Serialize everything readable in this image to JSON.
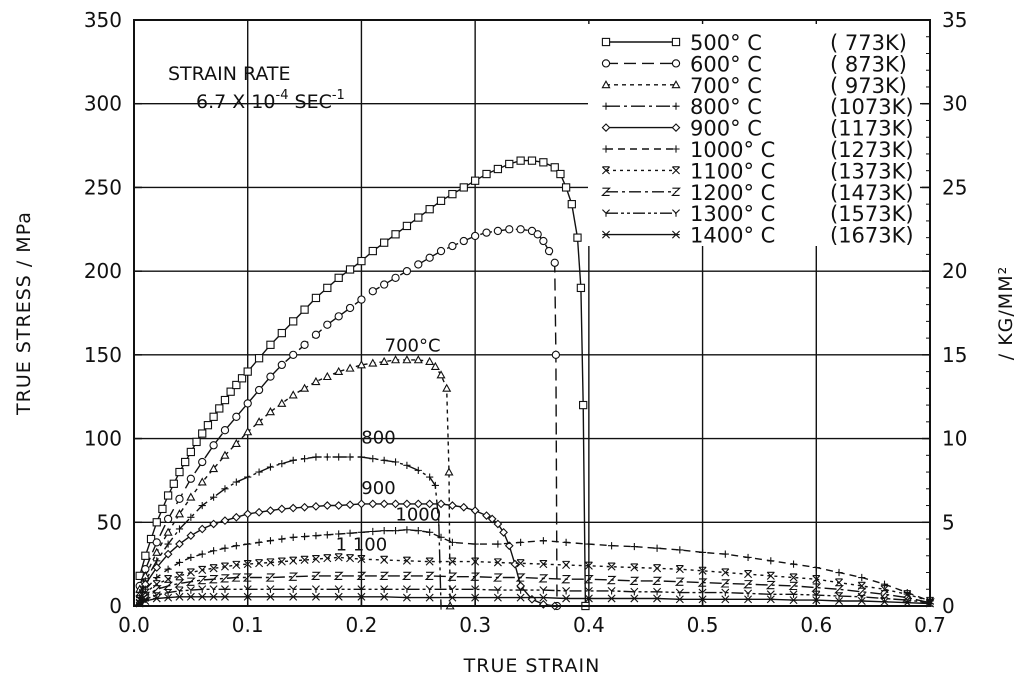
{
  "chart_data": {
    "type": "line",
    "xlabel": "TRUE STRAIN",
    "ylabel": "TRUE STRESS / MPa",
    "y2label": "/ KG/MM²",
    "xlim": [
      0,
      0.7
    ],
    "ylim": [
      0,
      350
    ],
    "y2lim": [
      0,
      35
    ],
    "xticks": [
      "0.0",
      "0.1",
      "0.2",
      "0.3",
      "0.4",
      "0.5",
      "0.6",
      "0.7"
    ],
    "yticks": [
      "0",
      "50",
      "100",
      "150",
      "200",
      "250",
      "300",
      "350"
    ],
    "y2ticks": [
      "0",
      "5",
      "10",
      "15",
      "20",
      "25",
      "30",
      "35"
    ],
    "grid": true,
    "legend_position": "top-right",
    "note": {
      "line1": "STRAIN RATE",
      "line2_base": "6.7 X 10",
      "line2_exp": "-4",
      "line2_unit": " SEC",
      "line2_unit_exp": "-1"
    },
    "annotations": [
      {
        "text": "700°C",
        "x": 0.245,
        "y": 152
      },
      {
        "text": "800",
        "x": 0.215,
        "y": 97
      },
      {
        "text": "900",
        "x": 0.215,
        "y": 67
      },
      {
        "text": "1000",
        "x": 0.25,
        "y": 51
      },
      {
        "text": "1 100",
        "x": 0.2,
        "y": 33
      }
    ],
    "series": [
      {
        "name": "500° C",
        "kelvin": "( 773K)",
        "marker": "square",
        "dash": "",
        "x": [
          0.005,
          0.01,
          0.015,
          0.02,
          0.025,
          0.03,
          0.035,
          0.04,
          0.045,
          0.05,
          0.055,
          0.06,
          0.065,
          0.07,
          0.075,
          0.08,
          0.085,
          0.09,
          0.095,
          0.1,
          0.11,
          0.12,
          0.13,
          0.14,
          0.15,
          0.16,
          0.17,
          0.18,
          0.19,
          0.2,
          0.21,
          0.22,
          0.23,
          0.24,
          0.25,
          0.26,
          0.27,
          0.28,
          0.29,
          0.3,
          0.31,
          0.32,
          0.33,
          0.34,
          0.35,
          0.36,
          0.37,
          0.375,
          0.38,
          0.385,
          0.39,
          0.393,
          0.395,
          0.397
        ],
        "y": [
          18,
          30,
          40,
          50,
          58,
          66,
          73,
          80,
          86,
          92,
          98,
          103,
          108,
          113,
          118,
          123,
          128,
          132,
          136,
          140,
          148,
          156,
          163,
          170,
          177,
          184,
          190,
          196,
          201,
          206,
          212,
          217,
          222,
          227,
          232,
          237,
          242,
          246,
          250,
          254,
          258,
          261,
          264,
          266,
          266,
          265,
          262,
          258,
          250,
          240,
          220,
          190,
          120,
          0
        ]
      },
      {
        "name": "600° C",
        "kelvin": "( 873K)",
        "marker": "circle",
        "dash": "12,6",
        "x": [
          0.005,
          0.01,
          0.02,
          0.03,
          0.04,
          0.05,
          0.06,
          0.07,
          0.08,
          0.09,
          0.1,
          0.11,
          0.12,
          0.13,
          0.14,
          0.15,
          0.16,
          0.17,
          0.18,
          0.19,
          0.2,
          0.21,
          0.22,
          0.23,
          0.24,
          0.25,
          0.26,
          0.27,
          0.28,
          0.29,
          0.3,
          0.31,
          0.32,
          0.33,
          0.34,
          0.35,
          0.355,
          0.36,
          0.365,
          0.37,
          0.371,
          0.372
        ],
        "y": [
          12,
          22,
          38,
          52,
          64,
          76,
          86,
          96,
          105,
          113,
          121,
          129,
          137,
          144,
          150,
          156,
          162,
          168,
          173,
          178,
          183,
          188,
          192,
          196,
          200,
          204,
          208,
          212,
          215,
          218,
          221,
          223,
          224,
          225,
          225,
          224,
          222,
          218,
          212,
          205,
          150,
          0
        ]
      },
      {
        "name": "700° C",
        "kelvin": "( 973K)",
        "marker": "triangle",
        "dash": "4,4",
        "x": [
          0.005,
          0.01,
          0.02,
          0.03,
          0.04,
          0.05,
          0.06,
          0.07,
          0.08,
          0.09,
          0.1,
          0.11,
          0.12,
          0.13,
          0.14,
          0.15,
          0.16,
          0.17,
          0.18,
          0.19,
          0.2,
          0.21,
          0.22,
          0.23,
          0.24,
          0.25,
          0.26,
          0.265,
          0.27,
          0.275,
          0.277,
          0.278
        ],
        "y": [
          10,
          18,
          32,
          44,
          55,
          65,
          74,
          82,
          90,
          97,
          104,
          110,
          116,
          121,
          126,
          130,
          134,
          137,
          140,
          142,
          144,
          145,
          146,
          147,
          147,
          147,
          146,
          143,
          138,
          130,
          80,
          0
        ]
      },
      {
        "name": "800° C",
        "kelvin": "(1073K)",
        "marker": "plus",
        "dash": "14,4,3,4",
        "x": [
          0.005,
          0.01,
          0.02,
          0.03,
          0.04,
          0.05,
          0.06,
          0.07,
          0.08,
          0.09,
          0.1,
          0.11,
          0.12,
          0.13,
          0.14,
          0.15,
          0.16,
          0.17,
          0.18,
          0.19,
          0.2,
          0.21,
          0.22,
          0.23,
          0.24,
          0.25,
          0.26,
          0.265,
          0.268,
          0.27
        ],
        "y": [
          8,
          15,
          27,
          37,
          46,
          53,
          60,
          65,
          70,
          74,
          77,
          80,
          83,
          85,
          87,
          88,
          89,
          89,
          89,
          89,
          89,
          88,
          87,
          86,
          84,
          81,
          77,
          72,
          50,
          0
        ]
      },
      {
        "name": "900° C",
        "kelvin": "(1173K)",
        "marker": "diamond",
        "dash": "",
        "x": [
          0.005,
          0.01,
          0.02,
          0.03,
          0.04,
          0.05,
          0.06,
          0.07,
          0.08,
          0.09,
          0.1,
          0.11,
          0.12,
          0.13,
          0.14,
          0.15,
          0.16,
          0.17,
          0.18,
          0.19,
          0.2,
          0.21,
          0.22,
          0.23,
          0.24,
          0.25,
          0.26,
          0.27,
          0.28,
          0.29,
          0.3,
          0.31,
          0.315,
          0.32,
          0.325,
          0.33,
          0.335,
          0.34,
          0.35,
          0.36,
          0.37
        ],
        "y": [
          6,
          13,
          23,
          31,
          37,
          42,
          46,
          49,
          51,
          53,
          55,
          56,
          57,
          58,
          58.5,
          59,
          59.5,
          60,
          60,
          60.5,
          61,
          61,
          61,
          61,
          61,
          61,
          61,
          61,
          60,
          59,
          57,
          54,
          52,
          49,
          44,
          36,
          25,
          12,
          4,
          1,
          0
        ]
      },
      {
        "name": "1000° C",
        "kelvin": "(1273K)",
        "marker": "plus",
        "dash": "7,5",
        "x": [
          0.005,
          0.01,
          0.02,
          0.03,
          0.04,
          0.05,
          0.06,
          0.07,
          0.08,
          0.09,
          0.1,
          0.11,
          0.12,
          0.13,
          0.14,
          0.15,
          0.16,
          0.17,
          0.18,
          0.19,
          0.2,
          0.21,
          0.22,
          0.23,
          0.24,
          0.25,
          0.26,
          0.27,
          0.28,
          0.3,
          0.32,
          0.34,
          0.36,
          0.38,
          0.4,
          0.42,
          0.44,
          0.46,
          0.48,
          0.5,
          0.52,
          0.54,
          0.56,
          0.58,
          0.6,
          0.62,
          0.64,
          0.66,
          0.68,
          0.7
        ],
        "y": [
          5,
          10,
          17,
          22,
          26,
          29,
          31,
          33,
          34.5,
          36,
          37,
          38,
          39,
          40,
          41,
          41.5,
          42,
          42.5,
          43,
          43.5,
          44,
          44.5,
          45,
          45,
          45.5,
          45,
          44,
          41,
          38,
          37,
          37,
          38,
          39,
          38,
          37,
          36,
          35.5,
          34.5,
          33.5,
          32,
          31,
          29,
          27,
          25,
          23,
          20,
          17,
          13,
          8,
          3
        ]
      },
      {
        "name": "1100° C",
        "kelvin": "(1373K)",
        "marker": "x",
        "dash": "3,4",
        "x": [
          0.005,
          0.01,
          0.02,
          0.03,
          0.04,
          0.05,
          0.06,
          0.07,
          0.08,
          0.09,
          0.1,
          0.11,
          0.12,
          0.13,
          0.14,
          0.15,
          0.16,
          0.17,
          0.18,
          0.19,
          0.2,
          0.22,
          0.24,
          0.26,
          0.28,
          0.3,
          0.32,
          0.34,
          0.36,
          0.38,
          0.4,
          0.42,
          0.44,
          0.46,
          0.48,
          0.5,
          0.52,
          0.54,
          0.56,
          0.58,
          0.6,
          0.62,
          0.64,
          0.66,
          0.68,
          0.7
        ],
        "y": [
          4,
          8,
          13,
          16,
          18,
          20,
          21.5,
          22.5,
          23.5,
          24.5,
          25,
          25.5,
          26,
          26.5,
          27,
          27.5,
          28,
          28.5,
          29,
          28.5,
          28,
          27.5,
          27,
          26.5,
          26.5,
          26.5,
          26,
          25.5,
          25,
          24.5,
          24,
          23.5,
          23,
          22.5,
          22,
          21,
          20,
          19,
          18,
          17,
          16,
          14,
          12,
          10,
          7,
          3
        ]
      },
      {
        "name": "1200° C",
        "kelvin": "(1473K)",
        "marker": "z",
        "dash": "12,4,3,4",
        "x": [
          0.005,
          0.01,
          0.02,
          0.03,
          0.04,
          0.05,
          0.06,
          0.07,
          0.08,
          0.09,
          0.1,
          0.12,
          0.14,
          0.16,
          0.18,
          0.2,
          0.22,
          0.24,
          0.26,
          0.28,
          0.3,
          0.32,
          0.34,
          0.36,
          0.38,
          0.4,
          0.42,
          0.44,
          0.46,
          0.48,
          0.5,
          0.52,
          0.54,
          0.56,
          0.58,
          0.6,
          0.62,
          0.64,
          0.66,
          0.68,
          0.7
        ],
        "y": [
          3,
          6,
          10,
          12,
          13.5,
          14.5,
          15.5,
          16,
          16.5,
          17,
          17,
          17,
          17.5,
          18,
          18,
          18,
          18,
          18,
          18,
          17.5,
          17.5,
          17,
          17,
          16.5,
          16,
          16,
          15.5,
          15,
          15,
          14.5,
          14,
          13.5,
          13,
          12.5,
          12,
          11,
          10,
          8.5,
          7,
          5,
          2
        ]
      },
      {
        "name": "1300° C",
        "kelvin": "(1573K)",
        "marker": "y",
        "dash": "12,3,3,3,3,3",
        "x": [
          0.005,
          0.01,
          0.02,
          0.03,
          0.04,
          0.05,
          0.06,
          0.07,
          0.08,
          0.1,
          0.12,
          0.14,
          0.16,
          0.18,
          0.2,
          0.22,
          0.24,
          0.26,
          0.28,
          0.3,
          0.32,
          0.34,
          0.36,
          0.38,
          0.4,
          0.42,
          0.44,
          0.46,
          0.48,
          0.5,
          0.52,
          0.54,
          0.56,
          0.58,
          0.6,
          0.62,
          0.64,
          0.66,
          0.68,
          0.7
        ],
        "y": [
          2,
          4,
          6.5,
          8,
          9,
          9.5,
          10,
          10,
          10,
          10,
          10,
          10,
          10,
          10,
          10,
          10,
          10,
          10,
          10,
          10,
          9.5,
          9.5,
          9.5,
          9,
          9,
          9,
          8.5,
          8.5,
          8,
          8,
          8,
          7.5,
          7,
          7,
          6.5,
          6,
          5.5,
          4.5,
          3.5,
          2
        ]
      },
      {
        "name": "1400° C",
        "kelvin": "(1673K)",
        "marker": "star",
        "dash": "",
        "x": [
          0.005,
          0.01,
          0.02,
          0.03,
          0.04,
          0.05,
          0.06,
          0.07,
          0.08,
          0.1,
          0.12,
          0.14,
          0.16,
          0.18,
          0.2,
          0.22,
          0.24,
          0.26,
          0.28,
          0.3,
          0.32,
          0.34,
          0.36,
          0.38,
          0.4,
          0.42,
          0.44,
          0.46,
          0.48,
          0.5,
          0.52,
          0.54,
          0.56,
          0.58,
          0.6,
          0.62,
          0.64,
          0.66,
          0.68,
          0.7
        ],
        "y": [
          1.5,
          3,
          4.5,
          5,
          5.5,
          5.5,
          5.5,
          5.5,
          5.5,
          5.5,
          5.5,
          5.5,
          5.5,
          5.5,
          5.5,
          5.5,
          5,
          5,
          5,
          5,
          5,
          5,
          5,
          4.5,
          4.5,
          4.5,
          4.5,
          4.5,
          4,
          4,
          4,
          4,
          4,
          3.5,
          3.5,
          3,
          3,
          2.5,
          2,
          1.5
        ]
      }
    ]
  }
}
